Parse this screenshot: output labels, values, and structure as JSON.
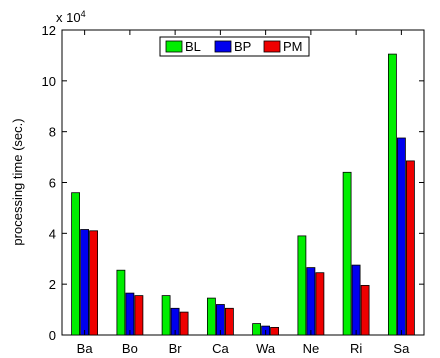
{
  "chart_data": {
    "type": "bar",
    "ylabel": "processing time (sec.)",
    "exponent_label": "x 10",
    "exponent_power": "4",
    "ylim": [
      0,
      12
    ],
    "yticks": [
      "0",
      "2",
      "4",
      "6",
      "8",
      "10",
      "12"
    ],
    "categories": [
      "Ba",
      "Bo",
      "Br",
      "Ca",
      "Wa",
      "Ne",
      "Ri",
      "Sa"
    ],
    "series": [
      {
        "name": "BL",
        "color": "#00ee00",
        "values": [
          5.6,
          2.55,
          1.55,
          1.45,
          0.45,
          3.9,
          6.4,
          11.05
        ]
      },
      {
        "name": "BP",
        "color": "#0000ee",
        "values": [
          4.15,
          1.65,
          1.05,
          1.2,
          0.35,
          2.65,
          2.75,
          7.75
        ]
      },
      {
        "name": "PM",
        "color": "#ee0000",
        "values": [
          4.1,
          1.55,
          0.9,
          1.05,
          0.3,
          2.45,
          1.95,
          6.85
        ]
      }
    ],
    "legend_position": "top-center",
    "grid": false
  }
}
